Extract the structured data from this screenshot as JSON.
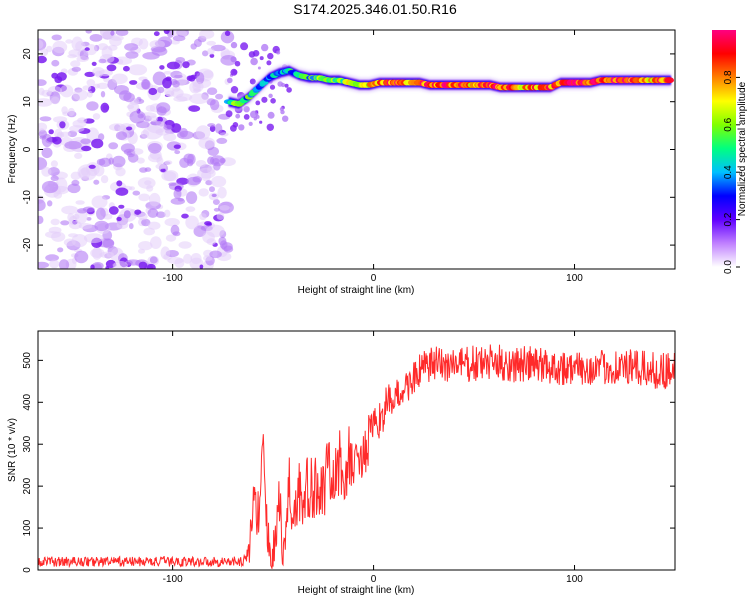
{
  "title": "S174.2025.346.01.50.R16",
  "chart_data": [
    {
      "type": "heatmap",
      "xlabel": "Height of straight line (km)",
      "ylabel": "Frequency (Hz)",
      "xlim": [
        -167,
        150
      ],
      "ylim": [
        -25,
        25
      ],
      "xticks": [
        -100,
        0,
        100
      ],
      "yticks": [
        -20,
        -10,
        0,
        10,
        20
      ],
      "ridge_x": [
        -72,
        -67,
        -62,
        -57,
        -52,
        -47,
        -42,
        -37,
        -32,
        -27,
        -22,
        -17,
        -12,
        -7,
        -2,
        3,
        8,
        13,
        18,
        23,
        28,
        33,
        38,
        43,
        48,
        53,
        58,
        63,
        68,
        73,
        78,
        83,
        88,
        93,
        98,
        103,
        108,
        113,
        118,
        123,
        128,
        133,
        138,
        143,
        148
      ],
      "ridge_freq": [
        10,
        9.5,
        11,
        13,
        15,
        16,
        16.5,
        15.5,
        15,
        15,
        14.5,
        14.5,
        14,
        13.5,
        13.5,
        14,
        14,
        14,
        14,
        14,
        13.5,
        13.5,
        13.5,
        13.5,
        13.5,
        13.5,
        13.5,
        13,
        13,
        13,
        13,
        13,
        13,
        14,
        14,
        14,
        14,
        14.5,
        14.5,
        14.5,
        14.5,
        14.5,
        14.5,
        14.5,
        14.5
      ],
      "ridge_amp": [
        0.4,
        0.5,
        0.45,
        0.4,
        0.35,
        0.45,
        0.45,
        0.4,
        0.45,
        0.5,
        0.55,
        0.55,
        0.6,
        0.65,
        0.7,
        0.8,
        0.85,
        0.9,
        0.85,
        0.85,
        0.8,
        0.85,
        0.9,
        0.85,
        0.8,
        0.85,
        0.9,
        0.85,
        0.8,
        0.75,
        0.8,
        0.85,
        0.8,
        0.85,
        0.9,
        0.9,
        0.85,
        0.85,
        0.9,
        0.9,
        0.85,
        0.85,
        0.8,
        0.8,
        0.8
      ],
      "noise_region_x": [
        -167,
        -72
      ],
      "colorbar": {
        "label": "Normalized spectral amplitude",
        "range": [
          0,
          1
        ],
        "ticks": [
          "0.0",
          "0.2",
          "0.4",
          "0.6",
          "0.8"
        ],
        "colors": [
          "#ffffff",
          "#c080ff",
          "#6000ff",
          "#0000ff",
          "#00c0ff",
          "#00ff80",
          "#80ff00",
          "#ffff00",
          "#ff8000",
          "#ff0000",
          "#ff0080"
        ]
      }
    },
    {
      "type": "line",
      "xlabel": "Height of straight line (km)",
      "ylabel": "SNR (10 * v/v)",
      "xlim": [
        -167,
        150
      ],
      "ylim": [
        0,
        570
      ],
      "xticks": [
        -100,
        0,
        100
      ],
      "yticks": [
        0,
        100,
        200,
        300,
        400,
        500
      ],
      "color": "#ff2020",
      "series": [
        {
          "name": "SNR",
          "x": [
            -167,
            -150,
            -130,
            -110,
            -90,
            -75,
            -65,
            -62,
            -60,
            -57,
            -55,
            -53,
            -50,
            -47,
            -45,
            -42,
            -40,
            -37,
            -35,
            -32,
            -30,
            -27,
            -25,
            -22,
            -20,
            -17,
            -15,
            -12,
            -10,
            -7,
            -5,
            -2,
            0,
            3,
            5,
            8,
            10,
            13,
            15,
            18,
            20,
            25,
            30,
            40,
            50,
            60,
            70,
            80,
            90,
            100,
            110,
            120,
            130,
            140,
            150
          ],
          "values": [
            20,
            20,
            20,
            20,
            20,
            20,
            20,
            40,
            150,
            140,
            290,
            80,
            30,
            180,
            20,
            200,
            120,
            200,
            140,
            210,
            170,
            230,
            180,
            240,
            200,
            260,
            210,
            270,
            230,
            290,
            260,
            320,
            330,
            360,
            380,
            400,
            410,
            420,
            430,
            445,
            460,
            480,
            490,
            490,
            490,
            495,
            490,
            490,
            485,
            480,
            480,
            485,
            480,
            475,
            480
          ],
          "noise": [
            12,
            12,
            12,
            12,
            12,
            12,
            12,
            30,
            60,
            60,
            60,
            60,
            50,
            80,
            40,
            90,
            60,
            100,
            70,
            100,
            70,
            100,
            80,
            90,
            70,
            80,
            70,
            80,
            60,
            70,
            60,
            70,
            50,
            50,
            50,
            45,
            40,
            40,
            40,
            40,
            40,
            45,
            45,
            45,
            45,
            45,
            45,
            45,
            45,
            40,
            40,
            45,
            45,
            45,
            45
          ]
        }
      ]
    }
  ]
}
